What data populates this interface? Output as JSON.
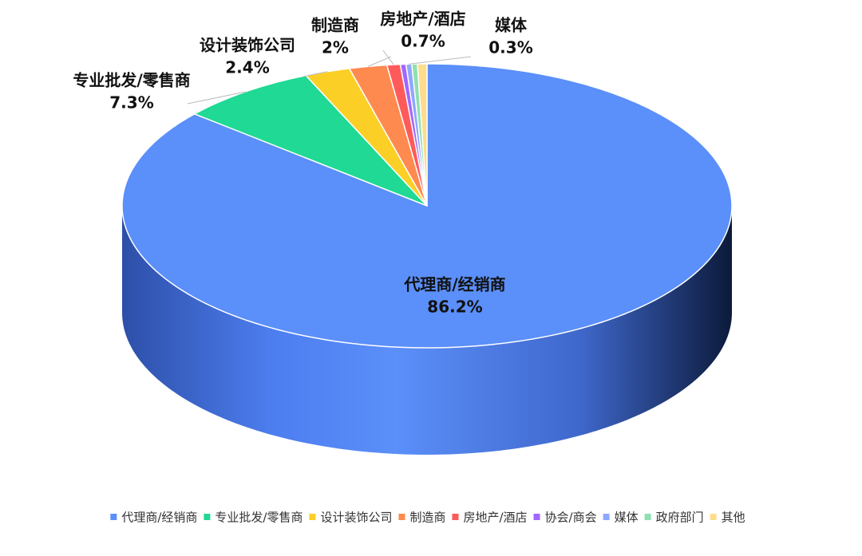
{
  "chart_data": {
    "type": "pie3d",
    "categories": [
      "代理商/经销商",
      "专业批发/零售商",
      "设计装饰公司",
      "制造商",
      "房地产/酒店",
      "协会/商会",
      "媒体",
      "政府部门",
      "其他"
    ],
    "values": [
      86.2,
      7.3,
      2.4,
      2,
      0.7,
      0.3,
      0.3,
      0.3,
      0.5
    ],
    "value_labels": [
      "86.2%",
      "7.3%",
      "2.4%",
      "2%",
      "0.7%",
      null,
      "0.3%",
      null,
      null
    ],
    "colors": [
      "#5b8ff9",
      "#1fd994",
      "#fccf26",
      "#ff8a50",
      "#ff5a5a",
      "#a067ff",
      "#8fa8ff",
      "#8fe0b0",
      "#ffdc8c"
    ],
    "legend": "bottom"
  }
}
